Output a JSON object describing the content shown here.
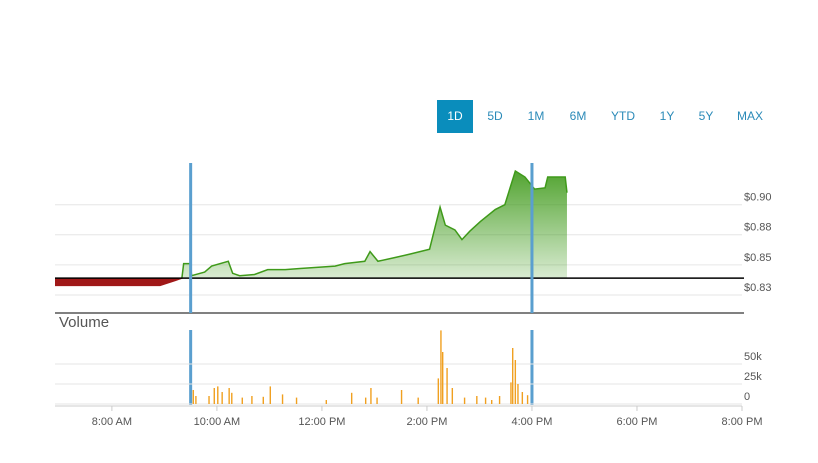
{
  "controls": {
    "ranges": [
      "1D",
      "5D",
      "1M",
      "6M",
      "YTD",
      "1Y",
      "5Y",
      "MAX"
    ],
    "active": 0
  },
  "chart_data": [
    {
      "type": "line",
      "x": [
        415,
        535,
        552,
        560,
        562,
        570,
        571,
        586,
        594,
        613,
        618,
        626,
        643,
        658,
        678,
        695,
        735,
        746,
        769,
        775,
        784,
        803,
        821,
        843,
        855,
        861,
        872,
        880,
        889,
        901,
        918,
        929,
        941,
        952,
        963,
        975,
        978,
        998,
        1000
      ],
      "values": [
        0.833,
        0.833,
        0.837,
        0.839,
        0.851,
        0.851,
        0.841,
        0.844,
        0.849,
        0.853,
        0.843,
        0.841,
        0.842,
        0.846,
        0.846,
        0.847,
        0.849,
        0.851,
        0.853,
        0.861,
        0.853,
        0.856,
        0.859,
        0.863,
        0.898,
        0.883,
        0.879,
        0.871,
        0.878,
        0.886,
        0.896,
        0.9,
        0.928,
        0.923,
        0.913,
        0.914,
        0.923,
        0.923,
        0.91
      ],
      "previous_close": 0.839,
      "session_lines": [
        570,
        960
      ],
      "up_color": "#3f9a1a",
      "down_color": "#a01818",
      "xlim": [
        415,
        1200
      ],
      "ylim": [
        0.81,
        0.933
      ],
      "yticks": [
        {
          "value": 0.9,
          "label": "$0.90"
        },
        {
          "value": 0.875,
          "label": "$0.88"
        },
        {
          "value": 0.85,
          "label": "$0.85"
        },
        {
          "value": 0.825,
          "label": "$0.83"
        }
      ],
      "grid": true
    },
    {
      "type": "bar",
      "title": "Volume",
      "x": [
        573,
        576,
        591,
        597,
        601,
        606,
        614,
        617,
        629,
        640,
        653,
        661,
        675,
        691,
        725,
        754,
        770,
        776,
        783,
        811,
        830,
        853,
        856,
        858,
        863,
        869,
        883,
        897,
        907,
        914,
        923,
        936,
        938,
        941,
        944,
        949,
        955
      ],
      "values": [
        17500,
        10000,
        10000,
        20000,
        22000,
        15000,
        20000,
        14000,
        8000,
        10000,
        9000,
        22000,
        12000,
        8000,
        5000,
        14000,
        8000,
        20000,
        8000,
        17500,
        8000,
        32000,
        92000,
        65000,
        45000,
        20000,
        8000,
        10000,
        8000,
        5000,
        10000,
        27000,
        70000,
        55000,
        25000,
        15000,
        11000
      ],
      "color": "#f0a020",
      "xlim": [
        415,
        1200
      ],
      "ylim": [
        0,
        92500
      ],
      "yticks": [
        {
          "value": 50000,
          "label": "50k"
        },
        {
          "value": 25000,
          "label": "25k"
        },
        0
      ],
      "xticks": [
        {
          "value": 480,
          "label": "8:00 AM"
        },
        {
          "value": 600,
          "label": "10:00 AM"
        },
        {
          "value": 720,
          "label": "12:00 PM"
        },
        {
          "value": 840,
          "label": "2:00 PM"
        },
        {
          "value": 960,
          "label": "4:00 PM"
        },
        {
          "value": 1080,
          "label": "6:00 PM"
        },
        {
          "value": 1200,
          "label": "8:00 PM"
        }
      ],
      "grid": true
    }
  ]
}
